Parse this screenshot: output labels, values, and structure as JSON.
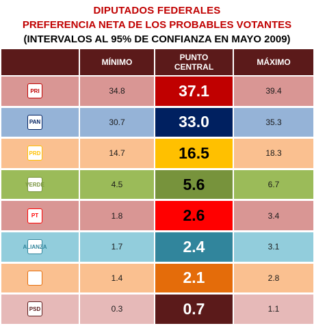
{
  "header": {
    "title": "DIPUTADOS FEDERALES",
    "subtitle": "PREFERENCIA NETA DE LOS PROBABLES VOTANTES",
    "note": "(INTERVALOS AL 95% DE CONFIANZA EN MAYO 2009)"
  },
  "columns": {
    "party": "",
    "min": "MÍNIMO",
    "central": "PUNTO CENTRAL",
    "max": "MÁXIMO"
  },
  "chart_data": {
    "type": "table",
    "title": "DIPUTADOS FEDERALES",
    "subtitle": "PREFERENCIA NETA DE LOS PROBABLES VOTANTES",
    "columns": [
      "MÍNIMO",
      "PUNTO CENTRAL",
      "MÁXIMO"
    ],
    "rows": [
      {
        "party_icon": "pri-logo-icon",
        "logo_text": "PRI",
        "row_color": "#d99694",
        "central_color": "#c00000",
        "central_text_color": "#ffffff",
        "min": "34.8",
        "central": "37.1",
        "max": "39.4"
      },
      {
        "party_icon": "pan-logo-icon",
        "logo_text": "PAN",
        "row_color": "#95b3d7",
        "central_color": "#002060",
        "central_text_color": "#ffffff",
        "min": "30.7",
        "central": "33.0",
        "max": "35.3"
      },
      {
        "party_icon": "prd-logo-icon",
        "logo_text": "PRD",
        "row_color": "#fac090",
        "central_color": "#ffc000",
        "central_text_color": "#000000",
        "min": "14.7",
        "central": "16.5",
        "max": "18.3"
      },
      {
        "party_icon": "verde-logo-icon",
        "logo_text": "VERDE",
        "row_color": "#9bbb59",
        "central_color": "#77933c",
        "central_text_color": "#000000",
        "min": "4.5",
        "central": "5.6",
        "max": "6.7"
      },
      {
        "party_icon": "pt-logo-icon",
        "logo_text": "PT",
        "row_color": "#d99694",
        "central_color": "#ff0000",
        "central_text_color": "#000000",
        "min": "1.8",
        "central": "2.6",
        "max": "3.4"
      },
      {
        "party_icon": "nueva-alianza-logo-icon",
        "logo_text": "ALIANZA",
        "row_color": "#92cddc",
        "central_color": "#31859c",
        "central_text_color": "#ffffff",
        "min": "1.7",
        "central": "2.4",
        "max": "3.1"
      },
      {
        "party_icon": "convergencia-logo-icon",
        "logo_text": "",
        "row_color": "#fac090",
        "central_color": "#e46c0a",
        "central_text_color": "#ffffff",
        "min": "1.4",
        "central": "2.1",
        "max": "2.8"
      },
      {
        "party_icon": "psd-logo-icon",
        "logo_text": "PSD",
        "row_color": "#e6b9b8",
        "central_color": "#5b1a1a",
        "central_text_color": "#ffffff",
        "min": "0.3",
        "central": "0.7",
        "max": "1.1"
      }
    ]
  },
  "colors": {
    "header_bg": "#5b1a1a",
    "title_red": "#c00000"
  }
}
